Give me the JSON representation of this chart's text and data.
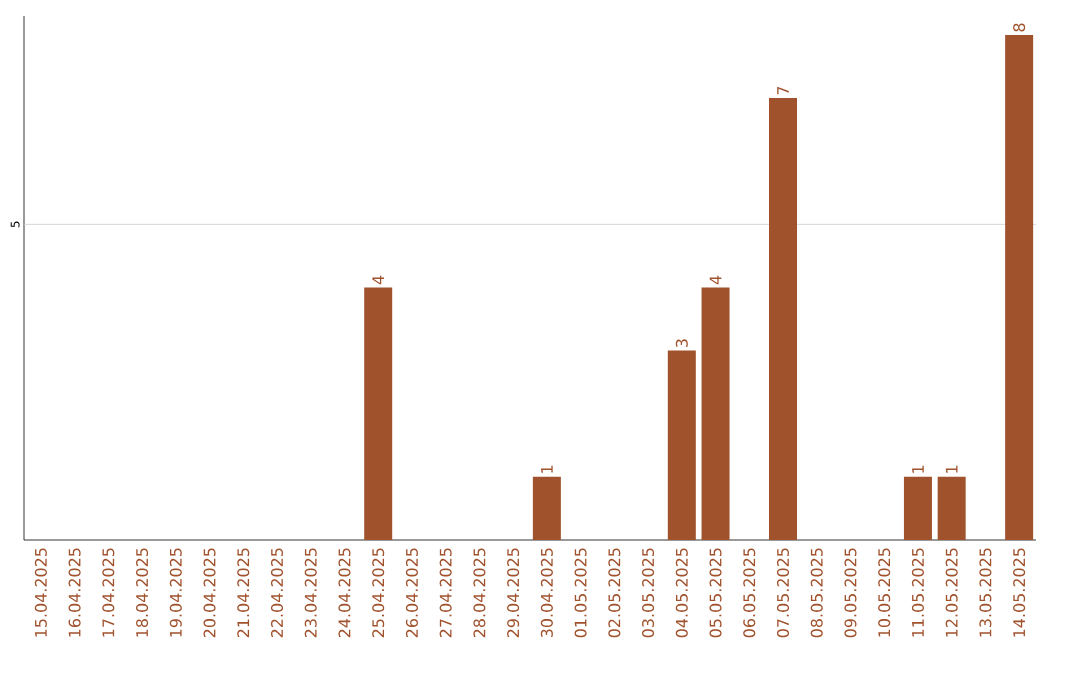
{
  "chart_data": {
    "type": "bar",
    "categories": [
      "15.04.2025",
      "16.04.2025",
      "17.04.2025",
      "18.04.2025",
      "19.04.2025",
      "20.04.2025",
      "21.04.2025",
      "22.04.2025",
      "23.04.2025",
      "24.04.2025",
      "25.04.2025",
      "26.04.2025",
      "27.04.2025",
      "28.04.2025",
      "29.04.2025",
      "30.04.2025",
      "01.05.2025",
      "02.05.2025",
      "03.05.2025",
      "04.05.2025",
      "05.05.2025",
      "06.05.2025",
      "07.05.2025",
      "08.05.2025",
      "09.05.2025",
      "10.05.2025",
      "11.05.2025",
      "12.05.2025",
      "13.05.2025",
      "14.05.2025"
    ],
    "values": [
      0,
      0,
      0,
      0,
      0,
      0,
      0,
      0,
      0,
      0,
      4,
      0,
      0,
      0,
      0,
      1,
      0,
      0,
      0,
      3,
      4,
      0,
      7,
      0,
      0,
      0,
      1,
      1,
      0,
      8
    ],
    "value_labels": [
      null,
      null,
      null,
      null,
      null,
      null,
      null,
      null,
      null,
      null,
      "4",
      null,
      null,
      null,
      null,
      "1",
      null,
      null,
      null,
      "3",
      "4",
      null,
      "7",
      null,
      null,
      null,
      "1",
      "1",
      null,
      "8"
    ],
    "color": "#a0522d",
    "ylim": [
      0,
      8.3
    ],
    "ref_lines": [
      {
        "axis": "y",
        "value": 5,
        "label": "5",
        "color": "#cccccc"
      }
    ]
  }
}
